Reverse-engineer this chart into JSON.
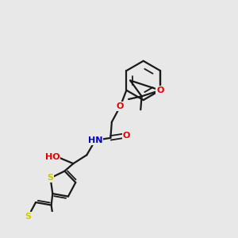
{
  "background_color": "#e8e8e8",
  "bond_color": "#1a1a1a",
  "atom_colors": {
    "O": "#e60000",
    "N": "#0000cc",
    "S": "#cccc00",
    "C": "#1a1a1a"
  },
  "figsize": [
    3.0,
    3.0
  ],
  "dpi": 100
}
